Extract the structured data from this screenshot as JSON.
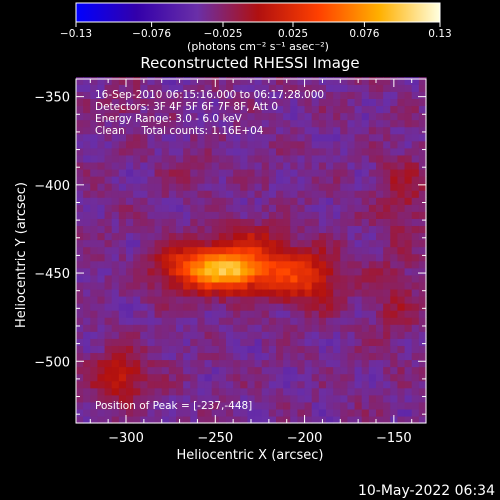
{
  "chart_data": {
    "type": "heatmap",
    "title": "Reconstructed RHESSI Image",
    "xlabel": "Heliocentric X (arcsec)",
    "ylabel": "Heliocentric Y (arcsec)",
    "xlim": [
      -328,
      -132
    ],
    "ylim": [
      -535,
      -340
    ],
    "x_ticks": [
      -300,
      -250,
      -200,
      -150
    ],
    "y_ticks": [
      -350,
      -400,
      -450,
      -500
    ],
    "x_tick_labels": [
      "−300",
      "−250",
      "−200",
      "−150"
    ],
    "y_tick_labels": [
      "−350",
      "−400",
      "−450",
      "−500"
    ],
    "colorbar": {
      "range": [
        -0.13,
        0.13
      ],
      "ticks": [
        -0.13,
        -0.076,
        -0.025,
        0.025,
        0.076,
        0.13
      ],
      "tick_labels": [
        "−0.13",
        "−0.076",
        "−0.025",
        "0.025",
        "0.076",
        "0.13"
      ],
      "unit_label": "(photons cm⁻² s⁻¹ asec⁻²)",
      "colors": [
        "#0000ff",
        "#3300aa",
        "#6a2fa8",
        "#b01010",
        "#ff4000",
        "#ffb000",
        "#ffffe0"
      ]
    },
    "annotations": [
      "16-Sep-2010 06:15:16.000 to 06:17:28.000",
      "Detectors: 3F 4F 5F 6F 7F 8F, Att 0",
      "Energy Range: 3.0 - 6.0 keV",
      "Clean     Total counts: 1.16E+04"
    ],
    "peak_label": "Position of Peak = [-237,-448]",
    "peak": {
      "x": -237,
      "y": -448,
      "value": 0.13
    },
    "sources": [
      {
        "x": -255,
        "y": -447,
        "sx": 17,
        "sy": 9,
        "amp": 0.105
      },
      {
        "x": -238,
        "y": -448,
        "sx": 9,
        "sy": 7,
        "amp": 0.05
      },
      {
        "x": -215,
        "y": -448,
        "sx": 16,
        "sy": 10,
        "amp": 0.055
      },
      {
        "x": -195,
        "y": -455,
        "sx": 13,
        "sy": 11,
        "amp": 0.035
      },
      {
        "x": -230,
        "y": -430,
        "sx": 12,
        "sy": 8,
        "amp": 0.025
      },
      {
        "x": -303,
        "y": -508,
        "sx": 11,
        "sy": 10,
        "amp": 0.045
      },
      {
        "x": -145,
        "y": -405,
        "sx": 10,
        "sy": 16,
        "amp": 0.025
      },
      {
        "x": -150,
        "y": -465,
        "sx": 10,
        "sy": 18,
        "amp": 0.02
      },
      {
        "x": -300,
        "y": -355,
        "sx": 8,
        "sy": 6,
        "amp": 0.015
      },
      {
        "x": -265,
        "y": -395,
        "sx": 10,
        "sy": 8,
        "amp": 0.012
      }
    ],
    "background_level": -0.035,
    "timestamp": "10-May-2022 06:34"
  }
}
